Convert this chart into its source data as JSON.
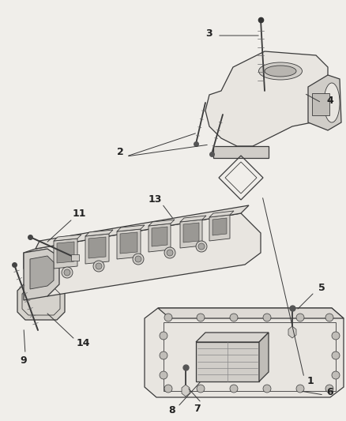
{
  "bg_color": "#f0eeea",
  "line_color": "#3a3a3a",
  "label_color": "#222222",
  "font_size": 9,
  "fill_light": "#e8e5e0",
  "fill_mid": "#d0cdc8",
  "fill_dark": "#b8b5b0"
}
